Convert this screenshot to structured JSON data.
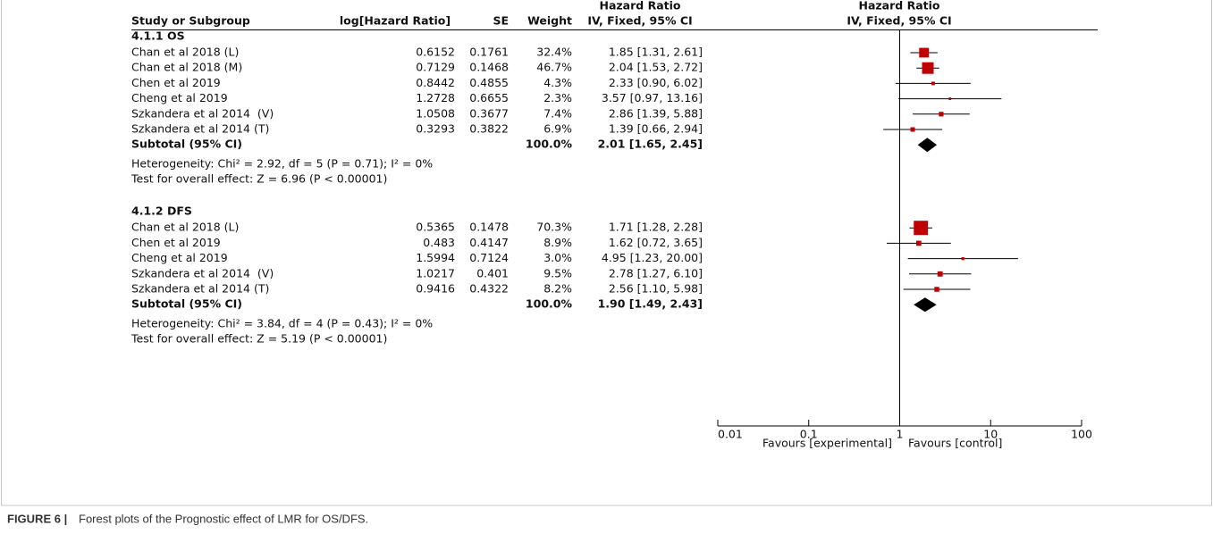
{
  "chart_data": {
    "type": "forest",
    "header": {
      "study": "Study or Subgroup",
      "loghr": "log[Hazard Ratio]",
      "se": "SE",
      "weight": "Weight",
      "ci_title": "Hazard Ratio",
      "ci_sub": "IV, Fixed, 95% CI",
      "plot_title": "Hazard Ratio",
      "plot_sub": "IV, Fixed, 95% CI"
    },
    "groups": [
      {
        "name": "4.1.1 OS",
        "studies": [
          {
            "name": "Chan et al 2018 (L)",
            "loghr": 0.6152,
            "se": 0.1761,
            "weight": 32.4,
            "weight_label": "32.4%",
            "hr": 1.85,
            "lo": 1.31,
            "hi": 2.61,
            "ci_label": "1.85 [1.31, 2.61]"
          },
          {
            "name": "Chan et al 2018 (M)",
            "loghr": 0.7129,
            "se": 0.1468,
            "weight": 46.7,
            "weight_label": "46.7%",
            "hr": 2.04,
            "lo": 1.53,
            "hi": 2.72,
            "ci_label": "2.04 [1.53, 2.72]"
          },
          {
            "name": "Chen et al 2019",
            "loghr": 0.8442,
            "se": 0.4855,
            "weight": 4.3,
            "weight_label": "4.3%",
            "hr": 2.33,
            "lo": 0.9,
            "hi": 6.02,
            "ci_label": "2.33 [0.90, 6.02]"
          },
          {
            "name": "Cheng et al 2019",
            "loghr": 1.2728,
            "se": 0.6655,
            "weight": 2.3,
            "weight_label": "2.3%",
            "hr": 3.57,
            "lo": 0.97,
            "hi": 13.16,
            "ci_label": "3.57 [0.97, 13.16]"
          },
          {
            "name": "Szkandera et al 2014  (V)",
            "loghr": 1.0508,
            "se": 0.3677,
            "weight": 7.4,
            "weight_label": "7.4%",
            "hr": 2.86,
            "lo": 1.39,
            "hi": 5.88,
            "ci_label": "2.86 [1.39, 5.88]"
          },
          {
            "name": "Szkandera et al 2014 (T)",
            "loghr": 0.3293,
            "se": 0.3822,
            "weight": 6.9,
            "weight_label": "6.9%",
            "hr": 1.39,
            "lo": 0.66,
            "hi": 2.94,
            "ci_label": "1.39 [0.66, 2.94]"
          }
        ],
        "subtotal": {
          "name": "Subtotal (95% CI)",
          "weight": 100.0,
          "weight_label": "100.0%",
          "hr": 2.01,
          "lo": 1.65,
          "hi": 2.45,
          "ci_label": "2.01 [1.65, 2.45]"
        },
        "heterogeneity": "Heterogeneity: Chi² = 2.92, df = 5 (P = 0.71); I² = 0%",
        "overall": "Test for overall effect: Z = 6.96 (P < 0.00001)"
      },
      {
        "name": "4.1.2 DFS",
        "studies": [
          {
            "name": "Chan et al 2018 (L)",
            "loghr": 0.5365,
            "se": 0.1478,
            "weight": 70.3,
            "weight_label": "70.3%",
            "hr": 1.71,
            "lo": 1.28,
            "hi": 2.28,
            "ci_label": "1.71 [1.28, 2.28]"
          },
          {
            "name": "Chen et al 2019",
            "loghr": 0.483,
            "se": 0.4147,
            "weight": 8.9,
            "weight_label": "8.9%",
            "hr": 1.62,
            "lo": 0.72,
            "hi": 3.65,
            "ci_label": "1.62 [0.72, 3.65]"
          },
          {
            "name": "Cheng et al 2019",
            "loghr": 1.5994,
            "se": 0.7124,
            "weight": 3.0,
            "weight_label": "3.0%",
            "hr": 4.95,
            "lo": 1.23,
            "hi": 20.0,
            "ci_label": "4.95 [1.23, 20.00]"
          },
          {
            "name": "Szkandera et al 2014  (V)",
            "loghr": 1.0217,
            "se": 0.401,
            "weight": 9.5,
            "weight_label": "9.5%",
            "hr": 2.78,
            "lo": 1.27,
            "hi": 6.1,
            "ci_label": "2.78 [1.27, 6.10]"
          },
          {
            "name": "Szkandera et al 2014 (T)",
            "loghr": 0.9416,
            "se": 0.4322,
            "weight": 8.2,
            "weight_label": "8.2%",
            "hr": 2.56,
            "lo": 1.1,
            "hi": 5.98,
            "ci_label": "2.56 [1.10, 5.98]"
          }
        ],
        "subtotal": {
          "name": "Subtotal (95% CI)",
          "weight": 100.0,
          "weight_label": "100.0%",
          "hr": 1.9,
          "lo": 1.49,
          "hi": 2.43,
          "ci_label": "1.90 [1.49, 2.43]"
        },
        "heterogeneity": "Heterogeneity: Chi² = 3.84, df = 4 (P = 0.43); I² = 0%",
        "overall": "Test for overall effect: Z = 5.19 (P < 0.00001)"
      }
    ],
    "xscale": "log",
    "xlim": [
      0.01,
      100
    ],
    "xticks": [
      0.01,
      0.1,
      1,
      10,
      100
    ],
    "favours_left": "Favours [experimental]",
    "favours_right": "Favours [control]",
    "marker_color": "#c00000",
    "diamond_color": "#000000",
    "caption_label": "FIGURE 6 |",
    "caption": "Forest plots of the Prognostic effect of LMR for OS/DFS."
  }
}
